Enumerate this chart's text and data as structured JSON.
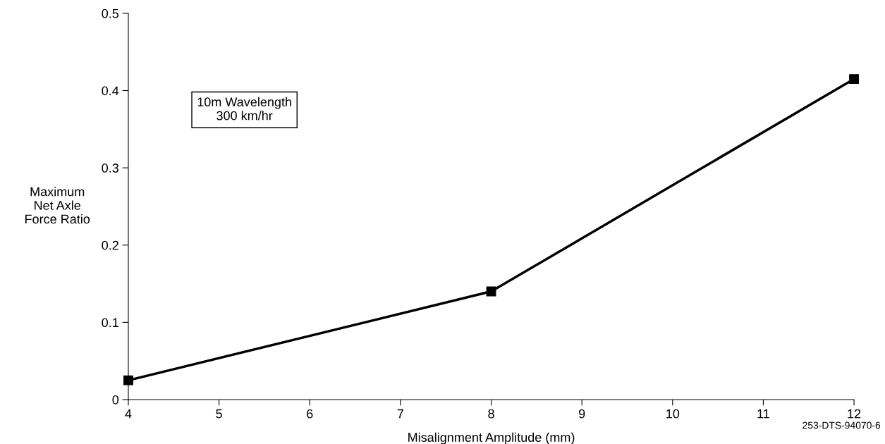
{
  "chart_data": {
    "type": "line",
    "xlabel": "Misalignment Amplitude (mm)",
    "ylabel": "Maximum\nNet Axle\nForce Ratio",
    "x": [
      4,
      8,
      12
    ],
    "series": [
      {
        "color": "#000000",
        "values": [
          0.025,
          0.14,
          0.415
        ]
      }
    ],
    "xlim": [
      4,
      12
    ],
    "xticks": [
      4,
      5,
      6,
      7,
      8,
      9,
      10,
      11,
      12
    ],
    "ylim": [
      0,
      0.5
    ],
    "yticks": [
      0,
      0.1,
      0.2,
      0.3,
      0.4,
      0.5
    ],
    "marker": "square",
    "line_style": "solid",
    "grid": false,
    "legend": false,
    "annotations": [
      "10m Wavelength\n300 km/hr",
      "253-DTS-94070-6"
    ]
  }
}
